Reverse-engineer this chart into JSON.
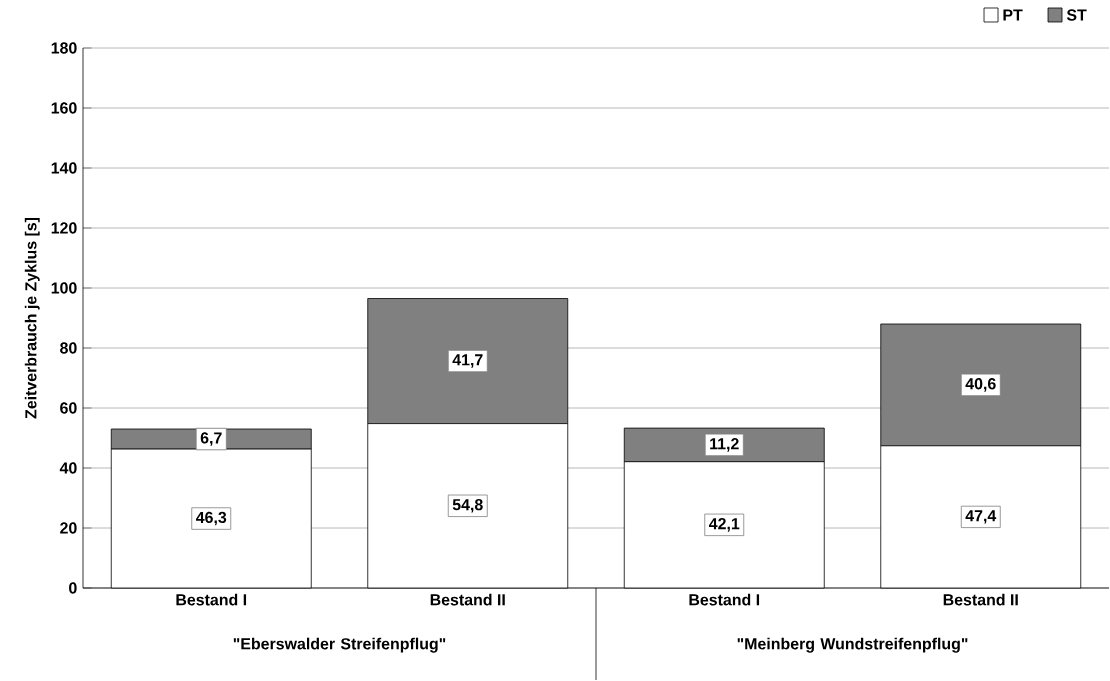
{
  "chart_data": {
    "type": "bar",
    "stacked": true,
    "ylabel": "Zeitverbrauch je Zyklus [s]",
    "categories": [
      "Bestand I",
      "Bestand II",
      "Bestand I",
      "Bestand II"
    ],
    "series": [
      {
        "name": "PT",
        "color": "#ffffff",
        "values": [
          46.3,
          54.8,
          42.1,
          47.4
        ],
        "value_labels": [
          "46,3",
          "54,8",
          "42,1",
          "47,4"
        ]
      },
      {
        "name": "ST",
        "color": "#808080",
        "values": [
          6.7,
          41.7,
          11.2,
          40.6
        ],
        "value_labels": [
          "6,7",
          "41,7",
          "11,2",
          "40,6"
        ]
      }
    ],
    "annotations": [
      "\"Eberswalder Streifenpflug\"",
      "\"Meinberg Wundstreifenpflug\""
    ],
    "ylim": [
      0,
      180
    ],
    "yticks": [
      0,
      20,
      40,
      60,
      80,
      100,
      120,
      140,
      160,
      180
    ],
    "grid": "y",
    "legend": "top right"
  }
}
